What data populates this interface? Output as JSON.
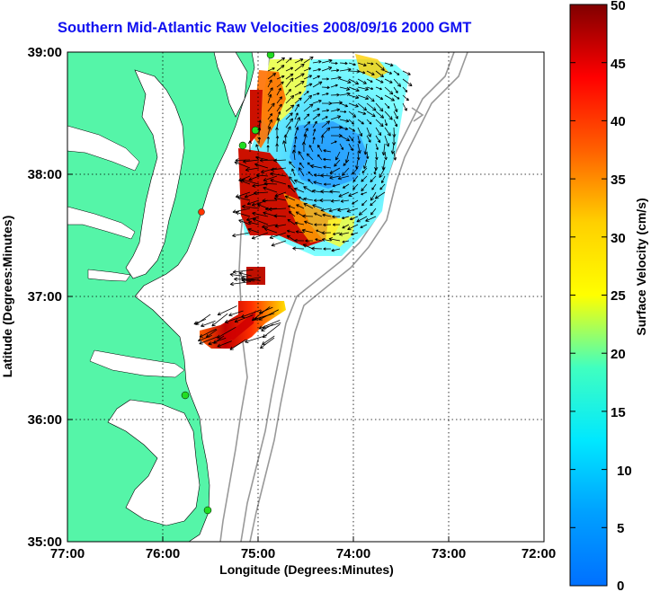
{
  "title": "Southern Mid-Atlantic Raw Velocities 2008/09/16 2000 GMT",
  "axes": {
    "xlabel": "Longitude (Degrees:Minutes)",
    "ylabel": "Latitude (Degrees:Minutes)",
    "x_ticks": [
      "77:00",
      "76:00",
      "75:00",
      "74:00",
      "73:00",
      "72:00"
    ],
    "y_ticks": [
      "39:00",
      "38:00",
      "37:00",
      "36:00",
      "35:00"
    ]
  },
  "colorbar": {
    "label": "Surface Velocity (cm/s)",
    "ticks": [
      "50",
      "45",
      "40",
      "35",
      "30",
      "25",
      "20",
      "15",
      "10",
      "5",
      "0"
    ],
    "range": [
      0,
      50
    ]
  },
  "colors": {
    "land": "#55f5a8",
    "water": "#ffffff",
    "title": "#1010f0",
    "bathymetry": "#999999",
    "station": "#22dd22",
    "station_red": "#ff3300"
  }
}
